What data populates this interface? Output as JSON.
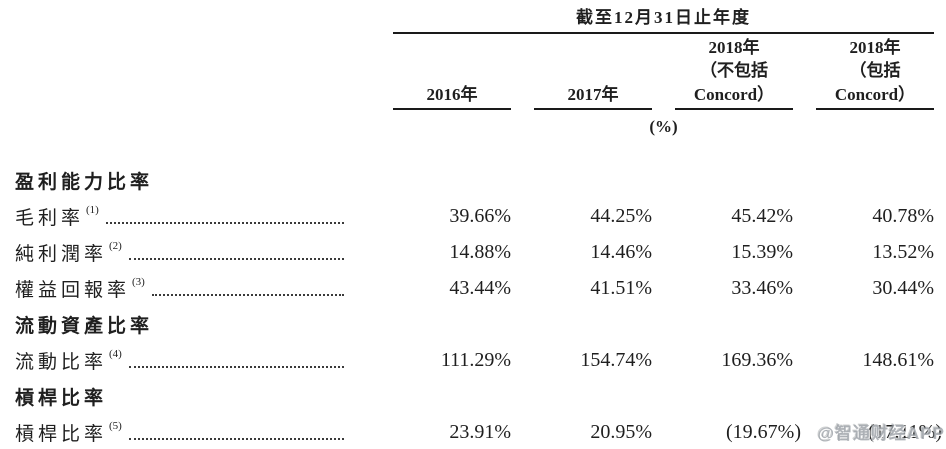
{
  "table": {
    "period_header": "截至12月31日止年度",
    "unit_label": "(%)",
    "columns": [
      {
        "lines": [
          "2016年"
        ]
      },
      {
        "lines": [
          "2017年"
        ]
      },
      {
        "lines": [
          "2018年",
          "（不包括",
          "Concord）"
        ]
      },
      {
        "lines": [
          "2018年",
          "（包括",
          "Concord）"
        ]
      }
    ],
    "rows": [
      {
        "type": "section",
        "label": "盈利能力比率"
      },
      {
        "type": "data",
        "label": "毛利率",
        "note": "(1)",
        "values": [
          "39.66%",
          "44.25%",
          "45.42%",
          "40.78%"
        ]
      },
      {
        "type": "data",
        "label": "純利潤率",
        "note": "(2)",
        "values": [
          "14.88%",
          "14.46%",
          "15.39%",
          "13.52%"
        ]
      },
      {
        "type": "data",
        "label": "權益回報率",
        "note": "(3)",
        "values": [
          "43.44%",
          "41.51%",
          "33.46%",
          "30.44%"
        ]
      },
      {
        "type": "section",
        "label": "流動資產比率"
      },
      {
        "type": "data",
        "label": "流動比率",
        "note": "(4)",
        "values": [
          "111.29%",
          "154.74%",
          "169.36%",
          "148.61%"
        ]
      },
      {
        "type": "section",
        "label": "槓桿比率"
      },
      {
        "type": "data",
        "label": "槓桿比率",
        "note": "(5)",
        "values": [
          "23.91%",
          "20.95%",
          "(19.67%)",
          "(17.11%)"
        ]
      }
    ]
  },
  "watermark": {
    "text": "@智通财经APP"
  },
  "colors": {
    "text": "#1f1f1f",
    "rule": "#1a1a1a",
    "watermark": "#969ba2"
  }
}
